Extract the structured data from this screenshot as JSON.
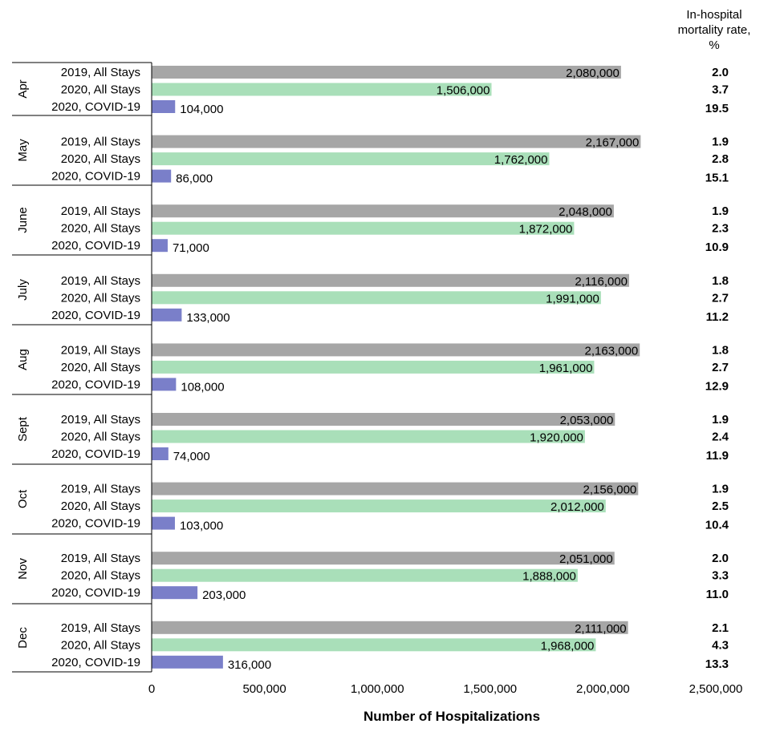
{
  "chart_data": {
    "type": "bar",
    "orientation": "horizontal",
    "xlabel": "Number of Hospitalizations",
    "xlim": [
      0,
      2500000
    ],
    "xticks": [
      "0",
      "500,000",
      "1,000,000",
      "1,500,000",
      "2,000,000",
      "2,500,000"
    ],
    "xtick_values": [
      0,
      500000,
      1000000,
      1500000,
      2000000,
      2500000
    ],
    "grid": false,
    "mortality_header": "In-hospital mortality rate, %",
    "mortality_header_lines": [
      "In-hospital",
      "mortality rate,",
      "%"
    ],
    "series": [
      {
        "name": "2019, All Stays",
        "color": "#a6a6a6"
      },
      {
        "name": "2020, All Stays",
        "color": "#a9dfb9"
      },
      {
        "name": "2020, COVID-19",
        "color": "#7a7fc9"
      }
    ],
    "groups": [
      {
        "month": "Apr",
        "values": [
          2080000,
          1506000,
          104000
        ],
        "labels": [
          "2,080,000",
          "1,506,000",
          "104,000"
        ],
        "mortality": [
          "2.0",
          "3.7",
          "19.5"
        ]
      },
      {
        "month": "May",
        "values": [
          2167000,
          1762000,
          86000
        ],
        "labels": [
          "2,167,000",
          "1,762,000",
          "86,000"
        ],
        "mortality": [
          "1.9",
          "2.8",
          "15.1"
        ]
      },
      {
        "month": "June",
        "values": [
          2048000,
          1872000,
          71000
        ],
        "labels": [
          "2,048,000",
          "1,872,000",
          "71,000"
        ],
        "mortality": [
          "1.9",
          "2.3",
          "10.9"
        ]
      },
      {
        "month": "July",
        "values": [
          2116000,
          1991000,
          133000
        ],
        "labels": [
          "2,116,000",
          "1,991,000",
          "133,000"
        ],
        "mortality": [
          "1.8",
          "2.7",
          "11.2"
        ]
      },
      {
        "month": "Aug",
        "values": [
          2163000,
          1961000,
          108000
        ],
        "labels": [
          "2,163,000",
          "1,961,000",
          "108,000"
        ],
        "mortality": [
          "1.8",
          "2.7",
          "12.9"
        ]
      },
      {
        "month": "Sept",
        "values": [
          2053000,
          1920000,
          74000
        ],
        "labels": [
          "2,053,000",
          "1,920,000",
          "74,000"
        ],
        "mortality": [
          "1.9",
          "2.4",
          "11.9"
        ]
      },
      {
        "month": "Oct",
        "values": [
          2156000,
          2012000,
          103000
        ],
        "labels": [
          "2,156,000",
          "2,012,000",
          "103,000"
        ],
        "mortality": [
          "1.9",
          "2.5",
          "10.4"
        ]
      },
      {
        "month": "Nov",
        "values": [
          2051000,
          1888000,
          203000
        ],
        "labels": [
          "2,051,000",
          "1,888,000",
          "203,000"
        ],
        "mortality": [
          "2.0",
          "3.3",
          "11.0"
        ]
      },
      {
        "month": "Dec",
        "values": [
          2111000,
          1968000,
          316000
        ],
        "labels": [
          "2,111,000",
          "1,968,000",
          "316,000"
        ],
        "mortality": [
          "2.1",
          "4.3",
          "13.3"
        ]
      }
    ]
  }
}
